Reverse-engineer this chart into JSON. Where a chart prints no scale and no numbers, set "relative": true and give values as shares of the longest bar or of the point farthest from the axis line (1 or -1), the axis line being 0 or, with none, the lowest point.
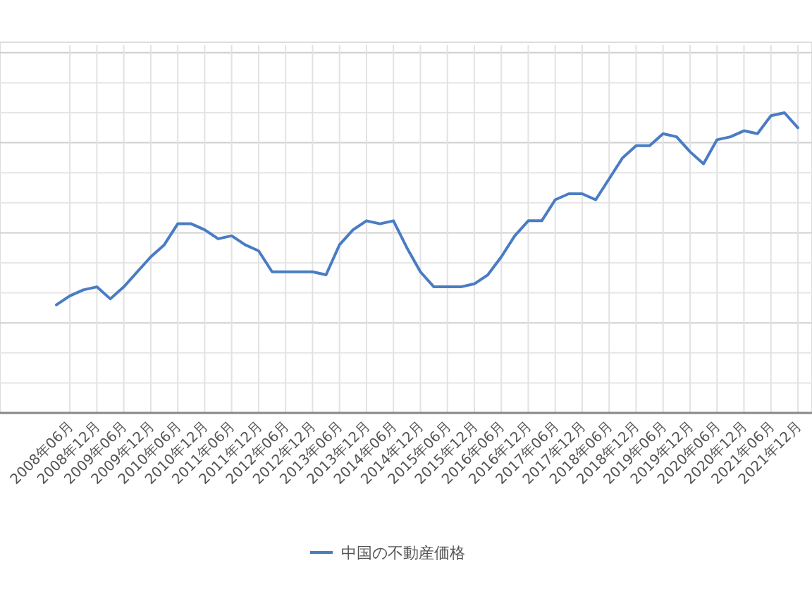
{
  "chart_data": {
    "type": "line",
    "relative": true,
    "grid": true,
    "legend": "bottom",
    "categories": [
      null,
      "2008年06月",
      null,
      "2008年12月",
      null,
      "2009年06月",
      null,
      "2009年12月",
      null,
      "2010年06月",
      null,
      "2010年12月",
      null,
      "2011年06月",
      null,
      "2011年12月",
      null,
      "2012年06月",
      null,
      "2012年12月",
      null,
      "2013年06月",
      null,
      "2013年12月",
      null,
      "2014年06月",
      null,
      "2014年12月",
      null,
      "2015年06月",
      null,
      "2015年12月",
      null,
      "2016年06月",
      null,
      "2016年12月",
      null,
      "2017年06月",
      null,
      "2017年12月",
      null,
      "2018年06月",
      null,
      "2018年12月",
      null,
      "2019年06月",
      null,
      "2019年12月",
      null,
      "2020年06月",
      null,
      "2020年12月",
      null,
      "2021年06月",
      null,
      "2021年12月"
    ],
    "series": [
      {
        "name": "中国の不動産価格",
        "color": "#4a7cc4",
        "values": [
          0.36,
          0.39,
          0.41,
          0.42,
          0.38,
          0.42,
          0.47,
          0.52,
          0.56,
          0.63,
          0.63,
          0.61,
          0.58,
          0.59,
          0.56,
          0.54,
          0.47,
          0.47,
          0.47,
          0.47,
          0.46,
          0.56,
          0.61,
          0.64,
          0.63,
          0.64,
          0.55,
          0.47,
          0.42,
          0.42,
          0.42,
          0.43,
          0.46,
          0.52,
          0.59,
          0.64,
          0.64,
          0.71,
          0.73,
          0.73,
          0.71,
          0.78,
          0.85,
          0.89,
          0.89,
          0.93,
          0.92,
          0.87,
          0.83,
          0.91,
          0.92,
          0.94,
          0.93,
          0.99,
          1,
          0.95
        ]
      }
    ]
  }
}
